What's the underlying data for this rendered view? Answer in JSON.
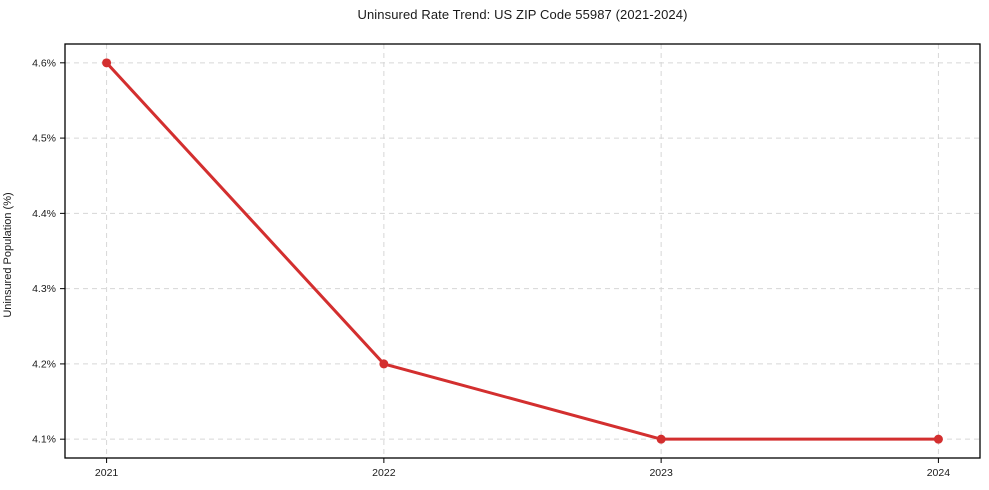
{
  "chart_data": {
    "type": "line",
    "title": "Uninsured Rate Trend: US ZIP Code 55987 (2021-2024)",
    "xlabel": "",
    "ylabel": "Uninsured Population (%)",
    "x": [
      2021,
      2022,
      2023,
      2024
    ],
    "values": [
      4.6,
      4.2,
      4.1,
      4.1
    ],
    "x_tick_labels": [
      "2021",
      "2022",
      "2023",
      "2024"
    ],
    "y_ticks": [
      {
        "value": 4.1,
        "label": "4.1%"
      },
      {
        "value": 4.2,
        "label": "4.2%"
      },
      {
        "value": 4.3,
        "label": "4.3%"
      },
      {
        "value": 4.4,
        "label": "4.4%"
      },
      {
        "value": 4.5,
        "label": "4.5%"
      },
      {
        "value": 4.6,
        "label": "4.6%"
      }
    ],
    "xlim": [
      2020.85,
      2024.15
    ],
    "ylim": [
      4.075,
      4.625
    ],
    "grid": true,
    "grid_style": "dashed",
    "legend": "none",
    "marker": "circle",
    "marker_radius": 4.5,
    "line_width": 3,
    "colors": {
      "line": "#d32f2f",
      "marker": "#d32f2f",
      "grid": "#d6d6d6",
      "axis": "#000000",
      "text": "#1a1a1a",
      "background": "#ffffff"
    }
  }
}
